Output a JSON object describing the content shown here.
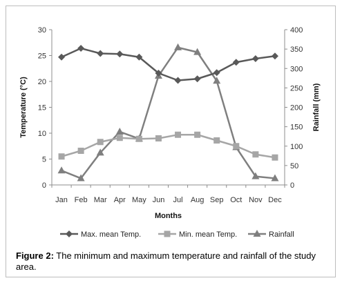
{
  "chart_data": {
    "type": "line",
    "categories": [
      "Jan",
      "Feb",
      "Mar",
      "Apr",
      "May",
      "Jun",
      "Jul",
      "Aug",
      "Sep",
      "Oct",
      "Nov",
      "Dec"
    ],
    "xlabel": "Months",
    "ylabel_left": "Temperature (°C)",
    "ylabel_right": "Rainfall (mm)",
    "ylim_left": [
      0,
      30
    ],
    "yticks_left": [
      0,
      5,
      10,
      15,
      20,
      25,
      30
    ],
    "ylim_right": [
      0,
      400
    ],
    "yticks_right": [
      0,
      50,
      100,
      150,
      200,
      250,
      300,
      350,
      400
    ],
    "grid": false,
    "legend_position": "bottom",
    "series": [
      {
        "name": "Max. mean Temp.",
        "axis": "left",
        "marker": "diamond",
        "color": "#595959",
        "values": [
          24.7,
          26.4,
          25.4,
          25.3,
          24.7,
          21.6,
          20.2,
          20.5,
          21.7,
          23.7,
          24.4,
          24.9
        ]
      },
      {
        "name": "Min. mean Temp.",
        "axis": "left",
        "marker": "square",
        "color": "#a6a6a6",
        "values": [
          5.5,
          6.6,
          8.3,
          9.1,
          8.9,
          9.0,
          9.7,
          9.7,
          8.6,
          7.5,
          5.9,
          5.3
        ]
      },
      {
        "name": "Rainfall",
        "axis": "right",
        "marker": "triangle",
        "color": "#7f7f7f",
        "values": [
          37,
          17,
          83,
          137,
          119,
          281,
          354,
          342,
          268,
          97,
          22,
          17
        ]
      }
    ]
  },
  "caption": {
    "label": "Figure 2:",
    "text": " The minimum and maximum temperature and rainfall of the study area."
  }
}
